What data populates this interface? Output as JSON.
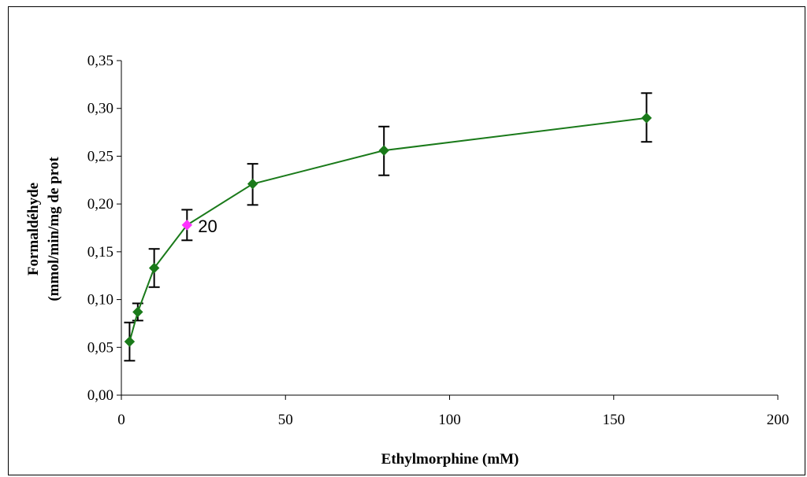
{
  "chart_data": {
    "type": "line",
    "title": "",
    "xlabel": "Ethylmorphine (mM)",
    "ylabel_line1": "Formaldéhyde",
    "ylabel_line2": "(mmol/min/mg de prot",
    "xlim": [
      0,
      200
    ],
    "ylim": [
      0,
      0.35
    ],
    "x_ticks": [
      0,
      50,
      100,
      150,
      200
    ],
    "x_tick_labels": [
      "0",
      "50",
      "100",
      "150",
      "200"
    ],
    "y_ticks": [
      0,
      0.05,
      0.1,
      0.15,
      0.2,
      0.25,
      0.3,
      0.35
    ],
    "y_tick_labels": [
      "0,00",
      "0,05",
      "0,10",
      "0,15",
      "0,20",
      "0,25",
      "0,30",
      "0,35"
    ],
    "grid": false,
    "legend": "none",
    "series": [
      {
        "x": [
          2.5,
          5,
          10,
          20,
          40,
          80,
          160
        ],
        "y": [
          0.056,
          0.087,
          0.133,
          0.178,
          0.221,
          0.256,
          0.29
        ],
        "error_low": [
          0.036,
          0.078,
          0.113,
          0.162,
          0.199,
          0.23,
          0.265
        ],
        "error_high": [
          0.076,
          0.096,
          0.153,
          0.194,
          0.242,
          0.281,
          0.316
        ],
        "color": "#1a7a1a",
        "marker": "diamond"
      }
    ],
    "highlight": {
      "point_index": 3,
      "color": "#ff33ff",
      "label": "20"
    }
  },
  "colors": {
    "line": "#1a7a1a",
    "marker": "#1a7a1a",
    "highlight": "#ff33ff",
    "error_bar": "#000000",
    "axis": "#000000"
  }
}
